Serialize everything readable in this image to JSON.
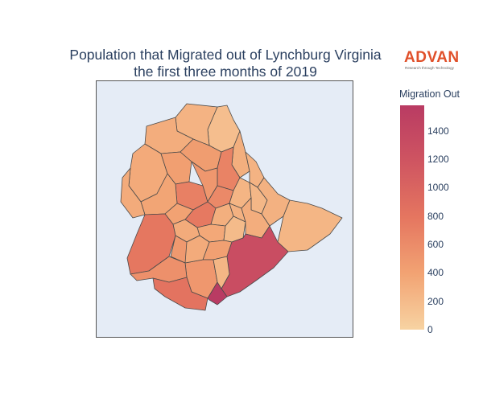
{
  "title_line1": "Population that Migrated out of Lynchburg Virginia",
  "title_line2": "the first three months of 2019",
  "logo": {
    "name": "ADVAN",
    "tagline": "Research through Technology"
  },
  "colorbar": {
    "title": "Migration Out",
    "min": 0,
    "max": 1580,
    "ticks": [
      "0",
      "200",
      "400",
      "600",
      "800",
      "1000",
      "1200",
      "1400"
    ],
    "colors": [
      "#f7d3a2",
      "#f2a373",
      "#e57660",
      "#cf5561",
      "#b93b63"
    ]
  },
  "map": {
    "type": "choropleth",
    "regions": [
      {
        "id": "north-tip",
        "value": 170
      },
      {
        "id": "north-upper",
        "value": 260
      },
      {
        "id": "northwest-1",
        "value": 310
      },
      {
        "id": "northwest-2",
        "value": 340
      },
      {
        "id": "north-mid",
        "value": 430
      },
      {
        "id": "north-center",
        "value": 450
      },
      {
        "id": "north-east-strip",
        "value": 300
      },
      {
        "id": "center-north",
        "value": 700
      },
      {
        "id": "center-north-east",
        "value": 680
      },
      {
        "id": "west-1",
        "value": 380
      },
      {
        "id": "west-2",
        "value": 330
      },
      {
        "id": "center-1",
        "value": 500
      },
      {
        "id": "center-2",
        "value": 620
      },
      {
        "id": "center-3",
        "value": 760
      },
      {
        "id": "center-4",
        "value": 400
      },
      {
        "id": "downtown-1",
        "value": 300
      },
      {
        "id": "downtown-2",
        "value": 250
      },
      {
        "id": "downtown-3",
        "value": 280
      },
      {
        "id": "downtown-4",
        "value": 350
      },
      {
        "id": "downtown-5",
        "value": 200
      },
      {
        "id": "downtown-6",
        "value": 330
      },
      {
        "id": "east-1",
        "value": 260
      },
      {
        "id": "east-2",
        "value": 230
      },
      {
        "id": "east-3",
        "value": 310
      },
      {
        "id": "east-4",
        "value": 280
      },
      {
        "id": "east-lobe",
        "value": 240
      },
      {
        "id": "south-west-large",
        "value": 780
      },
      {
        "id": "south-center-1",
        "value": 480
      },
      {
        "id": "south-center-2",
        "value": 420
      },
      {
        "id": "south-center-3",
        "value": 500
      },
      {
        "id": "south-west-lower",
        "value": 560
      },
      {
        "id": "south-bottom",
        "value": 820
      },
      {
        "id": "southeast-large",
        "value": 1300
      },
      {
        "id": "south-tip",
        "value": 1580
      },
      {
        "id": "center-south",
        "value": 240
      },
      {
        "id": "center-south-2",
        "value": 330
      }
    ]
  }
}
